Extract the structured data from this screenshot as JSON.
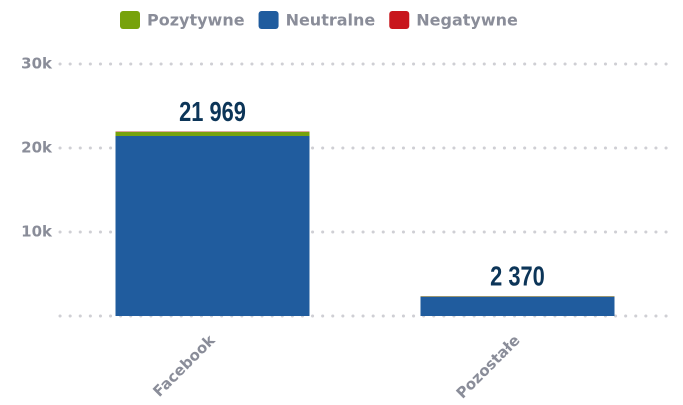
{
  "chart_data": {
    "type": "stacked_bar",
    "categories": [
      "Facebook",
      "Pozostałe"
    ],
    "series": [
      {
        "name": "Pozytywne",
        "color": "#77a20c",
        "values": [
          500,
          50
        ]
      },
      {
        "name": "Neutralne",
        "color": "#205c9e",
        "values": [
          21430,
          2300
        ]
      },
      {
        "name": "Negatywne",
        "color": "#c8161d",
        "values": [
          39,
          20
        ]
      }
    ],
    "stack_order": [
      "Neutralne",
      "Pozytywne",
      "Negatywne"
    ],
    "totals": [
      21969,
      2370
    ],
    "total_labels": [
      "21 969",
      "2 370"
    ],
    "ylim": [
      0,
      30000
    ],
    "yticks": [
      {
        "value": 10000,
        "label": "10k"
      },
      {
        "value": 20000,
        "label": "20k"
      },
      {
        "value": 30000,
        "label": "30k"
      }
    ],
    "grid": true,
    "legend": "top"
  }
}
